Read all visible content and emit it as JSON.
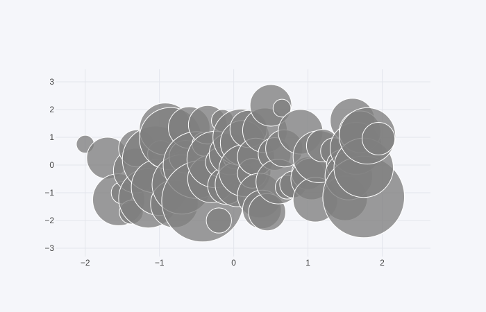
{
  "colors": {
    "background": "#f5f6fa",
    "grid": "#e3e5ec",
    "marker": "#7f7f7f",
    "marker_outline": "#ffffff"
  },
  "chart_data": {
    "type": "scatter",
    "marker": "bubble",
    "grid": true,
    "legend": "none",
    "xlim": [
      -2.4,
      2.65
    ],
    "ylim": [
      -3.3,
      3.45
    ],
    "x_ticks": [
      -2,
      -1,
      0,
      1,
      2
    ],
    "y_ticks": [
      -3,
      -2,
      -1,
      0,
      1,
      2,
      3
    ],
    "x_tick_labels": [
      "−2",
      "−1",
      "0",
      "1",
      "2"
    ],
    "y_tick_labels": [
      "−3",
      "−2",
      "−1",
      "0",
      "1",
      "2",
      "3"
    ],
    "series": [
      {
        "points": [
          {
            "x": -2.0,
            "y": 0.75,
            "size": 0.12
          },
          {
            "x": -1.7,
            "y": 0.25,
            "size": 0.28
          },
          {
            "x": -1.55,
            "y": -1.25,
            "size": 0.35
          },
          {
            "x": -1.5,
            "y": -1.0,
            "size": 0.15
          },
          {
            "x": -1.38,
            "y": -1.7,
            "size": 0.16
          },
          {
            "x": -1.32,
            "y": -0.2,
            "size": 0.3
          },
          {
            "x": -1.3,
            "y": 0.6,
            "size": 0.25
          },
          {
            "x": -1.15,
            "y": -1.2,
            "size": 0.4
          },
          {
            "x": -1.05,
            "y": 0.2,
            "size": 0.45
          },
          {
            "x": -1.0,
            "y": -0.8,
            "size": 0.38
          },
          {
            "x": -0.98,
            "y": 0.4,
            "size": 0.18
          },
          {
            "x": -0.92,
            "y": 1.3,
            "size": 0.35
          },
          {
            "x": -0.88,
            "y": -0.2,
            "size": 0.1
          },
          {
            "x": -0.85,
            "y": 0.95,
            "size": 0.42
          },
          {
            "x": -0.8,
            "y": -1.4,
            "size": 0.32
          },
          {
            "x": -0.7,
            "y": -0.7,
            "size": 0.4
          },
          {
            "x": -0.65,
            "y": 0.3,
            "size": 0.22
          },
          {
            "x": -0.6,
            "y": 1.35,
            "size": 0.28
          },
          {
            "x": -0.5,
            "y": 0.0,
            "size": 0.45
          },
          {
            "x": -0.42,
            "y": -1.3,
            "size": 0.55
          },
          {
            "x": -0.4,
            "y": 0.75,
            "size": 0.16
          },
          {
            "x": -0.35,
            "y": 1.45,
            "size": 0.26
          },
          {
            "x": -0.3,
            "y": -0.5,
            "size": 0.32
          },
          {
            "x": -0.25,
            "y": 0.2,
            "size": 0.38
          },
          {
            "x": -0.2,
            "y": -2.0,
            "size": 0.17
          },
          {
            "x": -0.18,
            "y": 0.1,
            "size": 0.2
          },
          {
            "x": -0.15,
            "y": 1.6,
            "size": 0.15
          },
          {
            "x": -0.1,
            "y": -0.75,
            "size": 0.25
          },
          {
            "x": -0.05,
            "y": 0.4,
            "size": 0.28
          },
          {
            "x": 0.0,
            "y": 0.25,
            "size": 0.14
          },
          {
            "x": 0.05,
            "y": -0.7,
            "size": 0.3
          },
          {
            "x": 0.1,
            "y": 1.0,
            "size": 0.38
          },
          {
            "x": 0.12,
            "y": 0.8,
            "size": 0.3
          },
          {
            "x": 0.15,
            "y": -0.2,
            "size": 0.35
          },
          {
            "x": 0.2,
            "y": 1.3,
            "size": 0.25
          },
          {
            "x": 0.25,
            "y": -0.3,
            "size": 0.2
          },
          {
            "x": 0.3,
            "y": 0.3,
            "size": 0.25
          },
          {
            "x": 0.35,
            "y": -1.1,
            "size": 0.3
          },
          {
            "x": 0.38,
            "y": -1.6,
            "size": 0.26
          },
          {
            "x": 0.42,
            "y": 1.25,
            "size": 0.3
          },
          {
            "x": 0.45,
            "y": -1.7,
            "size": 0.25
          },
          {
            "x": 0.5,
            "y": 2.15,
            "size": 0.28
          },
          {
            "x": 0.55,
            "y": 0.4,
            "size": 0.22
          },
          {
            "x": 0.6,
            "y": -0.6,
            "size": 0.3
          },
          {
            "x": 0.65,
            "y": 2.05,
            "size": 0.12
          },
          {
            "x": 0.68,
            "y": 0.6,
            "size": 0.25
          },
          {
            "x": 0.72,
            "y": -0.8,
            "size": 0.16
          },
          {
            "x": 0.8,
            "y": -0.7,
            "size": 0.18
          },
          {
            "x": 0.9,
            "y": 1.2,
            "size": 0.3
          },
          {
            "x": 1.0,
            "y": -0.3,
            "size": 0.22
          },
          {
            "x": 1.05,
            "y": -0.5,
            "size": 0.28
          },
          {
            "x": 1.1,
            "y": -1.25,
            "size": 0.3
          },
          {
            "x": 1.15,
            "y": 0.3,
            "size": 0.35
          },
          {
            "x": 1.2,
            "y": 0.7,
            "size": 0.22
          },
          {
            "x": 1.35,
            "y": 0.5,
            "size": 0.18
          },
          {
            "x": 1.45,
            "y": 0.0,
            "size": 0.2
          },
          {
            "x": 1.5,
            "y": -1.2,
            "size": 0.3
          },
          {
            "x": 1.55,
            "y": -0.4,
            "size": 0.32
          },
          {
            "x": 1.6,
            "y": 1.6,
            "size": 0.3
          },
          {
            "x": 1.65,
            "y": 0.6,
            "size": 0.35
          },
          {
            "x": 1.7,
            "y": 1.2,
            "size": 0.28
          },
          {
            "x": 1.75,
            "y": -1.15,
            "size": 0.55
          },
          {
            "x": 1.75,
            "y": -0.1,
            "size": 0.4
          },
          {
            "x": 1.8,
            "y": 1.05,
            "size": 0.38
          },
          {
            "x": 1.95,
            "y": 0.95,
            "size": 0.22
          }
        ]
      }
    ]
  }
}
